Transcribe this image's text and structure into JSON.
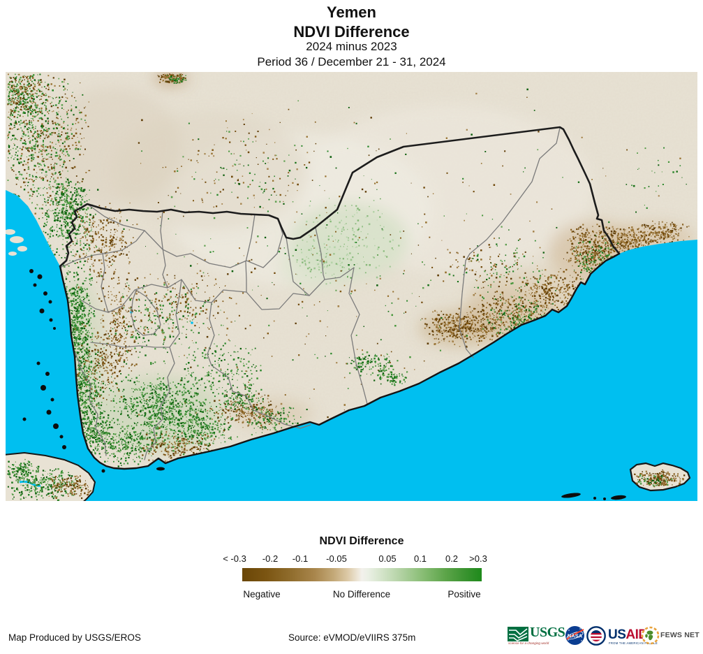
{
  "title": {
    "line1": "Yemen",
    "line2": "NDVI Difference",
    "line3": "2024 minus 2023",
    "line4": "Period 36 / December 21 - 31, 2024"
  },
  "legend": {
    "title": "NDVI Difference",
    "ticks": [
      "< -0.3",
      "-0.2",
      "-0.1",
      "-0.05",
      "0.05",
      "0.1",
      "0.2",
      ">0.3"
    ],
    "labels": {
      "negative": "Negative",
      "no_difference": "No Difference",
      "positive": "Positive"
    },
    "scale": {
      "min": -0.3,
      "max": 0.3,
      "negative_color": "#6a4607",
      "neutral_color": "#f3f1ec",
      "positive_color": "#1e8a1b"
    }
  },
  "map": {
    "region": "Yemen",
    "water_color": "#00bff0",
    "land_color": "#e8e2d4",
    "border_color": "#1c1c1c",
    "admin_line_color": "#7b7b7b"
  },
  "footer": {
    "produced_by": "Map Produced by USGS/EROS",
    "source": "Source: eVMOD/eVIIRS 375m"
  },
  "logos": {
    "usgs": {
      "name": "USGS",
      "tagline": "science for a changing world"
    },
    "nasa": {
      "name": "NASA"
    },
    "usaid": {
      "part1": "US",
      "part2": "AID",
      "tagline": "FROM THE AMERICAN PEOPLE"
    },
    "fewsnet": {
      "name": "FEWS NET"
    }
  }
}
